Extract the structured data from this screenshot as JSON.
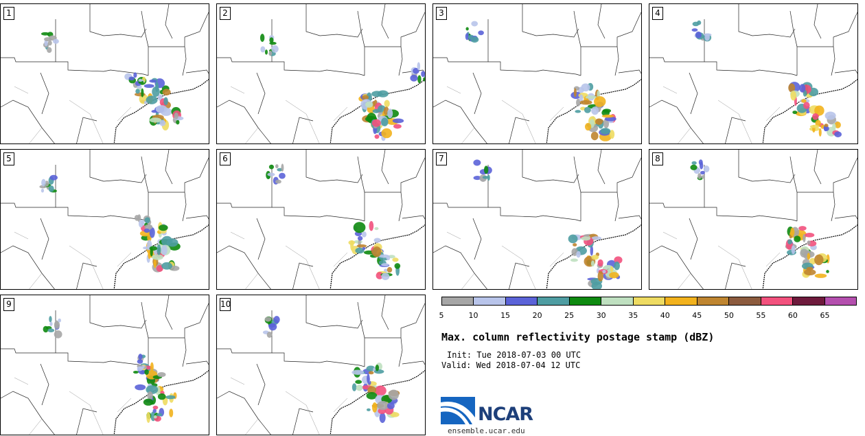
{
  "panels": [
    {
      "label": "1"
    },
    {
      "label": "2"
    },
    {
      "label": "3"
    },
    {
      "label": "4"
    },
    {
      "label": "5"
    },
    {
      "label": "6"
    },
    {
      "label": "7"
    },
    {
      "label": "8"
    },
    {
      "label": "9"
    },
    {
      "label": "10"
    }
  ],
  "colorbar": {
    "colors": [
      "#a6a6a6",
      "#b8c4ea",
      "#5b63d8",
      "#4e9da2",
      "#0e8a10",
      "#bfe0c0",
      "#eedb62",
      "#f2b21d",
      "#bf8530",
      "#8c5b3e",
      "#f2517d",
      "#6e1a3c",
      "#b44fae"
    ],
    "ticks": [
      "5",
      "10",
      "15",
      "20",
      "25",
      "30",
      "35",
      "40",
      "45",
      "50",
      "55",
      "60",
      "65"
    ]
  },
  "title": "Max. column reflectivity postage stamp (dBZ)",
  "init": "Init: Tue 2018-07-03 00 UTC",
  "valid": "Valid: Wed 2018-07-04 12 UTC",
  "logo": {
    "text": "NCAR",
    "site": "ensemble.ucar.edu"
  }
}
